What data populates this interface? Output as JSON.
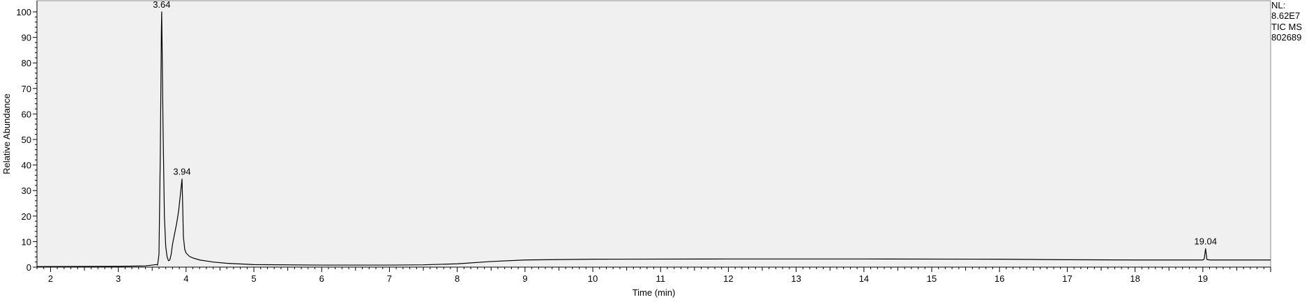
{
  "info": {
    "nl_label": "NL:",
    "nl_value": "8.62E7",
    "trace": "TIC  MS",
    "file": "802689"
  },
  "colors": {
    "plot_background": "#f0f0f0",
    "trace": "#000000"
  },
  "chart_data": {
    "type": "line",
    "xlabel": "Time (min)",
    "ylabel": "Relative Abundance",
    "xlim": [
      1.8,
      20.0
    ],
    "ylim": [
      0,
      100
    ],
    "x_ticks": [
      2,
      3,
      4,
      5,
      6,
      7,
      8,
      9,
      10,
      11,
      12,
      13,
      14,
      15,
      16,
      17,
      18,
      19
    ],
    "y_ticks": [
      0,
      10,
      20,
      30,
      40,
      50,
      60,
      70,
      80,
      90,
      100
    ],
    "peak_labels": [
      {
        "x": 3.64,
        "y": 100,
        "label": "3.64"
      },
      {
        "x": 3.94,
        "y": 34.5,
        "label": "3.94"
      },
      {
        "x": 19.04,
        "y": 7.2,
        "label": "19.04"
      }
    ],
    "series": [
      {
        "values": [
          [
            1.8,
            0.2
          ],
          [
            3.0,
            0.3
          ],
          [
            3.4,
            0.5
          ],
          [
            3.5,
            0.8
          ],
          [
            3.56,
            1.0
          ],
          [
            3.58,
            0.8
          ],
          [
            3.6,
            5
          ],
          [
            3.62,
            45
          ],
          [
            3.635,
            92
          ],
          [
            3.64,
            100
          ],
          [
            3.645,
            90
          ],
          [
            3.66,
            55
          ],
          [
            3.68,
            20
          ],
          [
            3.7,
            8
          ],
          [
            3.72,
            4
          ],
          [
            3.74,
            2.5
          ],
          [
            3.76,
            2.8
          ],
          [
            3.78,
            5
          ],
          [
            3.8,
            9
          ],
          [
            3.83,
            13
          ],
          [
            3.86,
            17
          ],
          [
            3.89,
            22
          ],
          [
            3.91,
            27
          ],
          [
            3.93,
            32
          ],
          [
            3.94,
            34.5
          ],
          [
            3.95,
            24
          ],
          [
            3.96,
            12
          ],
          [
            3.98,
            7
          ],
          [
            4.0,
            5.5
          ],
          [
            4.05,
            4.2
          ],
          [
            4.1,
            3.6
          ],
          [
            4.2,
            2.8
          ],
          [
            4.4,
            2.0
          ],
          [
            4.6,
            1.5
          ],
          [
            5.0,
            1.0
          ],
          [
            6.0,
            0.8
          ],
          [
            7.0,
            0.8
          ],
          [
            7.5,
            0.9
          ],
          [
            8.0,
            1.3
          ],
          [
            8.5,
            2.2
          ],
          [
            9.0,
            2.8
          ],
          [
            10.0,
            3.1
          ],
          [
            12.0,
            3.2
          ],
          [
            14.0,
            3.2
          ],
          [
            16.0,
            3.1
          ],
          [
            17.0,
            2.9
          ],
          [
            18.0,
            2.8
          ],
          [
            19.0,
            2.8
          ],
          [
            19.02,
            3.2
          ],
          [
            19.04,
            7.2
          ],
          [
            19.06,
            3.0
          ],
          [
            19.1,
            2.8
          ],
          [
            20.0,
            2.8
          ]
        ]
      }
    ],
    "grid": false,
    "legend": "none"
  }
}
